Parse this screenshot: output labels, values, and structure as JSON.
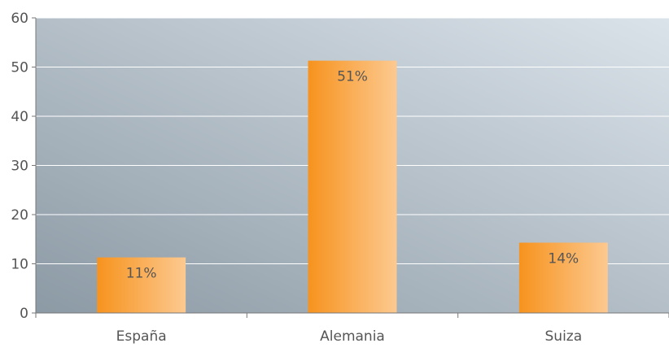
{
  "chart_data": {
    "type": "bar",
    "categories": [
      "España",
      "Alemania",
      "Suiza"
    ],
    "values": [
      11.3,
      51.3,
      14.3
    ],
    "data_labels": [
      "11%",
      "51%",
      "14%"
    ],
    "yticks": [
      0,
      10,
      20,
      30,
      40,
      50,
      60
    ],
    "ylim": [
      0,
      60
    ],
    "grid": true,
    "legend": "none",
    "colors": {
      "bar_start": "#f7931e",
      "bar_end": "#fcc990",
      "plot_bg_start": "#8c9aa5",
      "plot_bg_end": "#dbe3ea",
      "grid": "#ffffff",
      "axis": "#777777",
      "tick_text": "#555555",
      "label_text": "#555555"
    }
  }
}
